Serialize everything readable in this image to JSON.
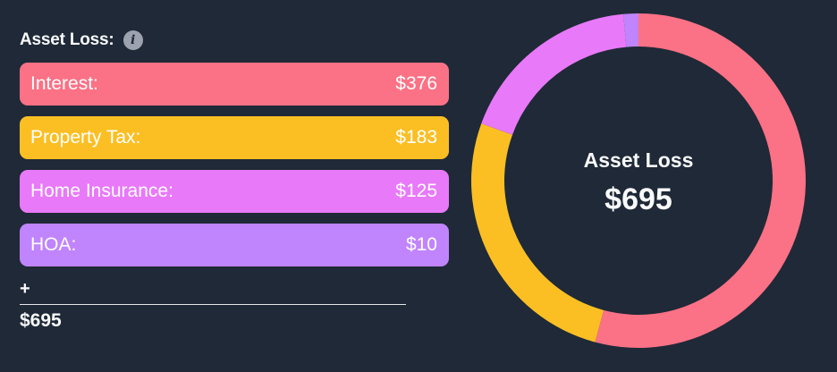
{
  "header": {
    "title": "Asset Loss:",
    "info_icon": "info-icon"
  },
  "items": [
    {
      "label": "Interest:",
      "value": "$376",
      "color": "#fb7185"
    },
    {
      "label": "Property Tax:",
      "value": "$183",
      "color": "#fbbf24"
    },
    {
      "label": "Home Insurance:",
      "value": "$125",
      "color": "#e879f9"
    },
    {
      "label": "HOA:",
      "value": "$10",
      "color": "#c084fc"
    }
  ],
  "summary": {
    "operator": "+",
    "total": "$695"
  },
  "donut": {
    "center_label": "Asset Loss",
    "center_value": "$695"
  },
  "chart_data": {
    "type": "pie",
    "variant": "donut",
    "title": "Asset Loss",
    "center_text": "$695",
    "categories": [
      "Interest",
      "Property Tax",
      "Home Insurance",
      "HOA"
    ],
    "values": [
      376,
      183,
      125,
      10
    ],
    "colors": [
      "#fb7185",
      "#fbbf24",
      "#e879f9",
      "#c084fc"
    ],
    "total": 695,
    "start_angle": "top, clockwise"
  }
}
